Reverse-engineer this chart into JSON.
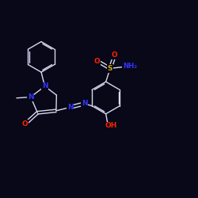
{
  "background_color": "#080818",
  "bond_color": "#d8d8f0",
  "atom_colors": {
    "N": "#3333ff",
    "O": "#ff2200",
    "S": "#ccaa00",
    "C": "#d8d8f0"
  },
  "fig_w": 2.5,
  "fig_h": 2.5,
  "dpi": 100,
  "xlim": [
    0,
    10
  ],
  "ylim": [
    0,
    10
  ]
}
